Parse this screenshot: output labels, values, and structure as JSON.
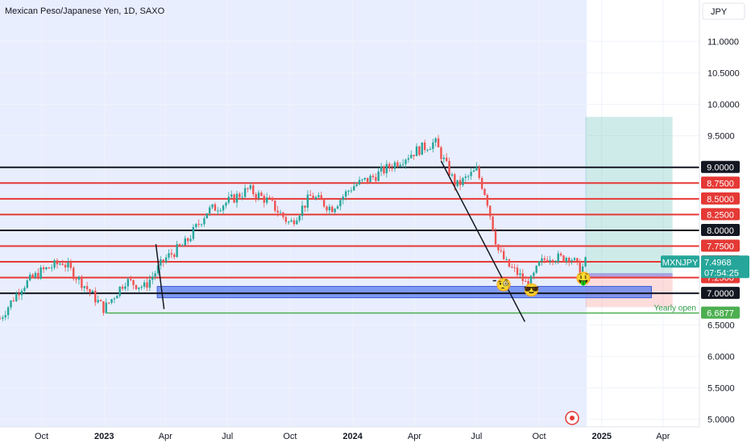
{
  "header": {
    "title": "Mexican Peso/Japanese Yen, 1D, SAXO",
    "currency_button": "JPY"
  },
  "colors": {
    "candle_up": "#26a69a",
    "candle_down": "#ef5350",
    "resistance_red": "#e53935",
    "level_black": "#131722",
    "yearly_open_green": "#4caf50",
    "demand_zone": "#5b7cf0",
    "price_label": "#26a69a",
    "background_tint": "#e8eefe"
  },
  "badges": {
    "symbol": "MXNJPY",
    "price": "7.4968",
    "countdown": "07:54:25",
    "yearly_open_text": "Yearly open"
  },
  "chart_data": {
    "type": "candlestick",
    "title": "Mexican Peso/Japanese Yen, 1D, SAXO",
    "x_ticks": [
      "Oct",
      "2023",
      "Apr",
      "Jul",
      "Oct",
      "2024",
      "Apr",
      "Jul",
      "Oct",
      "2025",
      "Apr"
    ],
    "y_ticks": [
      "11.0000",
      "10.5000",
      "10.0000",
      "9.5000",
      "9.0000",
      "8.5000",
      "8.0000",
      "7.5000",
      "7.0000",
      "6.5000",
      "6.0000",
      "5.5000",
      "5.0000"
    ],
    "ylim": [
      4.88,
      11.4
    ],
    "horizontal_levels": [
      {
        "value": 9.0,
        "label": "9.0000",
        "color": "black"
      },
      {
        "value": 8.75,
        "label": "8.7500",
        "color": "red"
      },
      {
        "value": 8.5,
        "label": "8.5000",
        "color": "red"
      },
      {
        "value": 8.25,
        "label": "8.2500",
        "color": "red"
      },
      {
        "value": 8.0,
        "label": "8.0000",
        "color": "black"
      },
      {
        "value": 7.75,
        "label": "7.7500",
        "color": "red"
      },
      {
        "value": 7.5,
        "label": "7.5000",
        "color": "red"
      },
      {
        "value": 7.25,
        "label": "7.2500",
        "color": "red"
      },
      {
        "value": 7.0,
        "label": "7.0000",
        "color": "black"
      },
      {
        "value": 6.6877,
        "label": "6.6877",
        "color": "green"
      }
    ],
    "price_series": [
      {
        "date": "2022-08-01",
        "close": 6.6
      },
      {
        "date": "2022-09-01",
        "close": 7.1
      },
      {
        "date": "2022-10-01",
        "close": 7.35
      },
      {
        "date": "2022-11-01",
        "close": 7.5
      },
      {
        "date": "2022-12-01",
        "close": 7.15
      },
      {
        "date": "2023-01-01",
        "close": 6.75
      },
      {
        "date": "2023-02-01",
        "close": 7.2
      },
      {
        "date": "2023-03-01",
        "close": 7.1
      },
      {
        "date": "2023-04-01",
        "close": 7.55
      },
      {
        "date": "2023-05-01",
        "close": 7.8
      },
      {
        "date": "2023-06-01",
        "close": 8.3
      },
      {
        "date": "2023-07-01",
        "close": 8.45
      },
      {
        "date": "2023-08-01",
        "close": 8.65
      },
      {
        "date": "2023-09-01",
        "close": 8.45
      },
      {
        "date": "2023-10-01",
        "close": 8.1
      },
      {
        "date": "2023-11-01",
        "close": 8.55
      },
      {
        "date": "2023-12-01",
        "close": 8.35
      },
      {
        "date": "2024-01-01",
        "close": 8.7
      },
      {
        "date": "2024-02-01",
        "close": 8.85
      },
      {
        "date": "2024-03-01",
        "close": 9.05
      },
      {
        "date": "2024-04-01",
        "close": 9.25
      },
      {
        "date": "2024-05-01",
        "close": 9.4
      },
      {
        "date": "2024-06-01",
        "close": 8.7
      },
      {
        "date": "2024-07-01",
        "close": 8.95
      },
      {
        "date": "2024-07-15",
        "close": 8.55
      },
      {
        "date": "2024-08-01",
        "close": 7.7
      },
      {
        "date": "2024-08-15",
        "close": 7.45
      },
      {
        "date": "2024-09-01",
        "close": 7.3
      },
      {
        "date": "2024-09-15",
        "close": 7.1
      },
      {
        "date": "2024-10-01",
        "close": 7.45
      },
      {
        "date": "2024-10-15",
        "close": 7.6
      },
      {
        "date": "2024-11-01",
        "close": 7.55
      },
      {
        "date": "2024-11-15",
        "close": 7.6
      },
      {
        "date": "2024-12-01",
        "close": 7.35
      },
      {
        "date": "2024-12-08",
        "close": 7.4968
      }
    ],
    "position": {
      "entry": 7.3,
      "target": 9.8,
      "stop": 6.78,
      "start_date": "2024-12-08",
      "end_date": "2025-04-15"
    },
    "demand_zone": {
      "top": 7.11,
      "bottom": 6.93,
      "start_date": "2023-03-20",
      "end_date": "2025-03-15"
    },
    "entry_zone": {
      "top": 7.32,
      "bottom": 7.25,
      "start_date": "2024-12-08",
      "end_date": "2025-04-15"
    },
    "trendlines": [
      {
        "from": {
          "date": "2023-03-18",
          "value": 7.78
        },
        "to": {
          "date": "2023-03-30",
          "value": 6.75
        }
      },
      {
        "from": {
          "date": "2024-05-10",
          "value": 9.1
        },
        "to": {
          "date": "2024-09-10",
          "value": 6.55
        }
      },
      {
        "from": {
          "date": "2024-07-25",
          "value": 7.2
        },
        "to": {
          "date": "2024-07-30",
          "value": 7.2
        }
      }
    ],
    "yearly_open": {
      "value": 6.6877,
      "label": "Yearly open",
      "start_date": "2023-01-05"
    },
    "background_shade": {
      "start_date": "2022-08-01",
      "end_date": "2024-12-10"
    },
    "annotations": [
      {
        "type": "emoji",
        "text": "🧐",
        "date": "2024-08-10",
        "value": 7.12
      },
      {
        "type": "emoji",
        "text": "😎",
        "date": "2024-09-20",
        "value": 7.04
      },
      {
        "type": "emoji",
        "text": "🤑",
        "date": "2024-12-05",
        "value": 7.22
      }
    ]
  }
}
